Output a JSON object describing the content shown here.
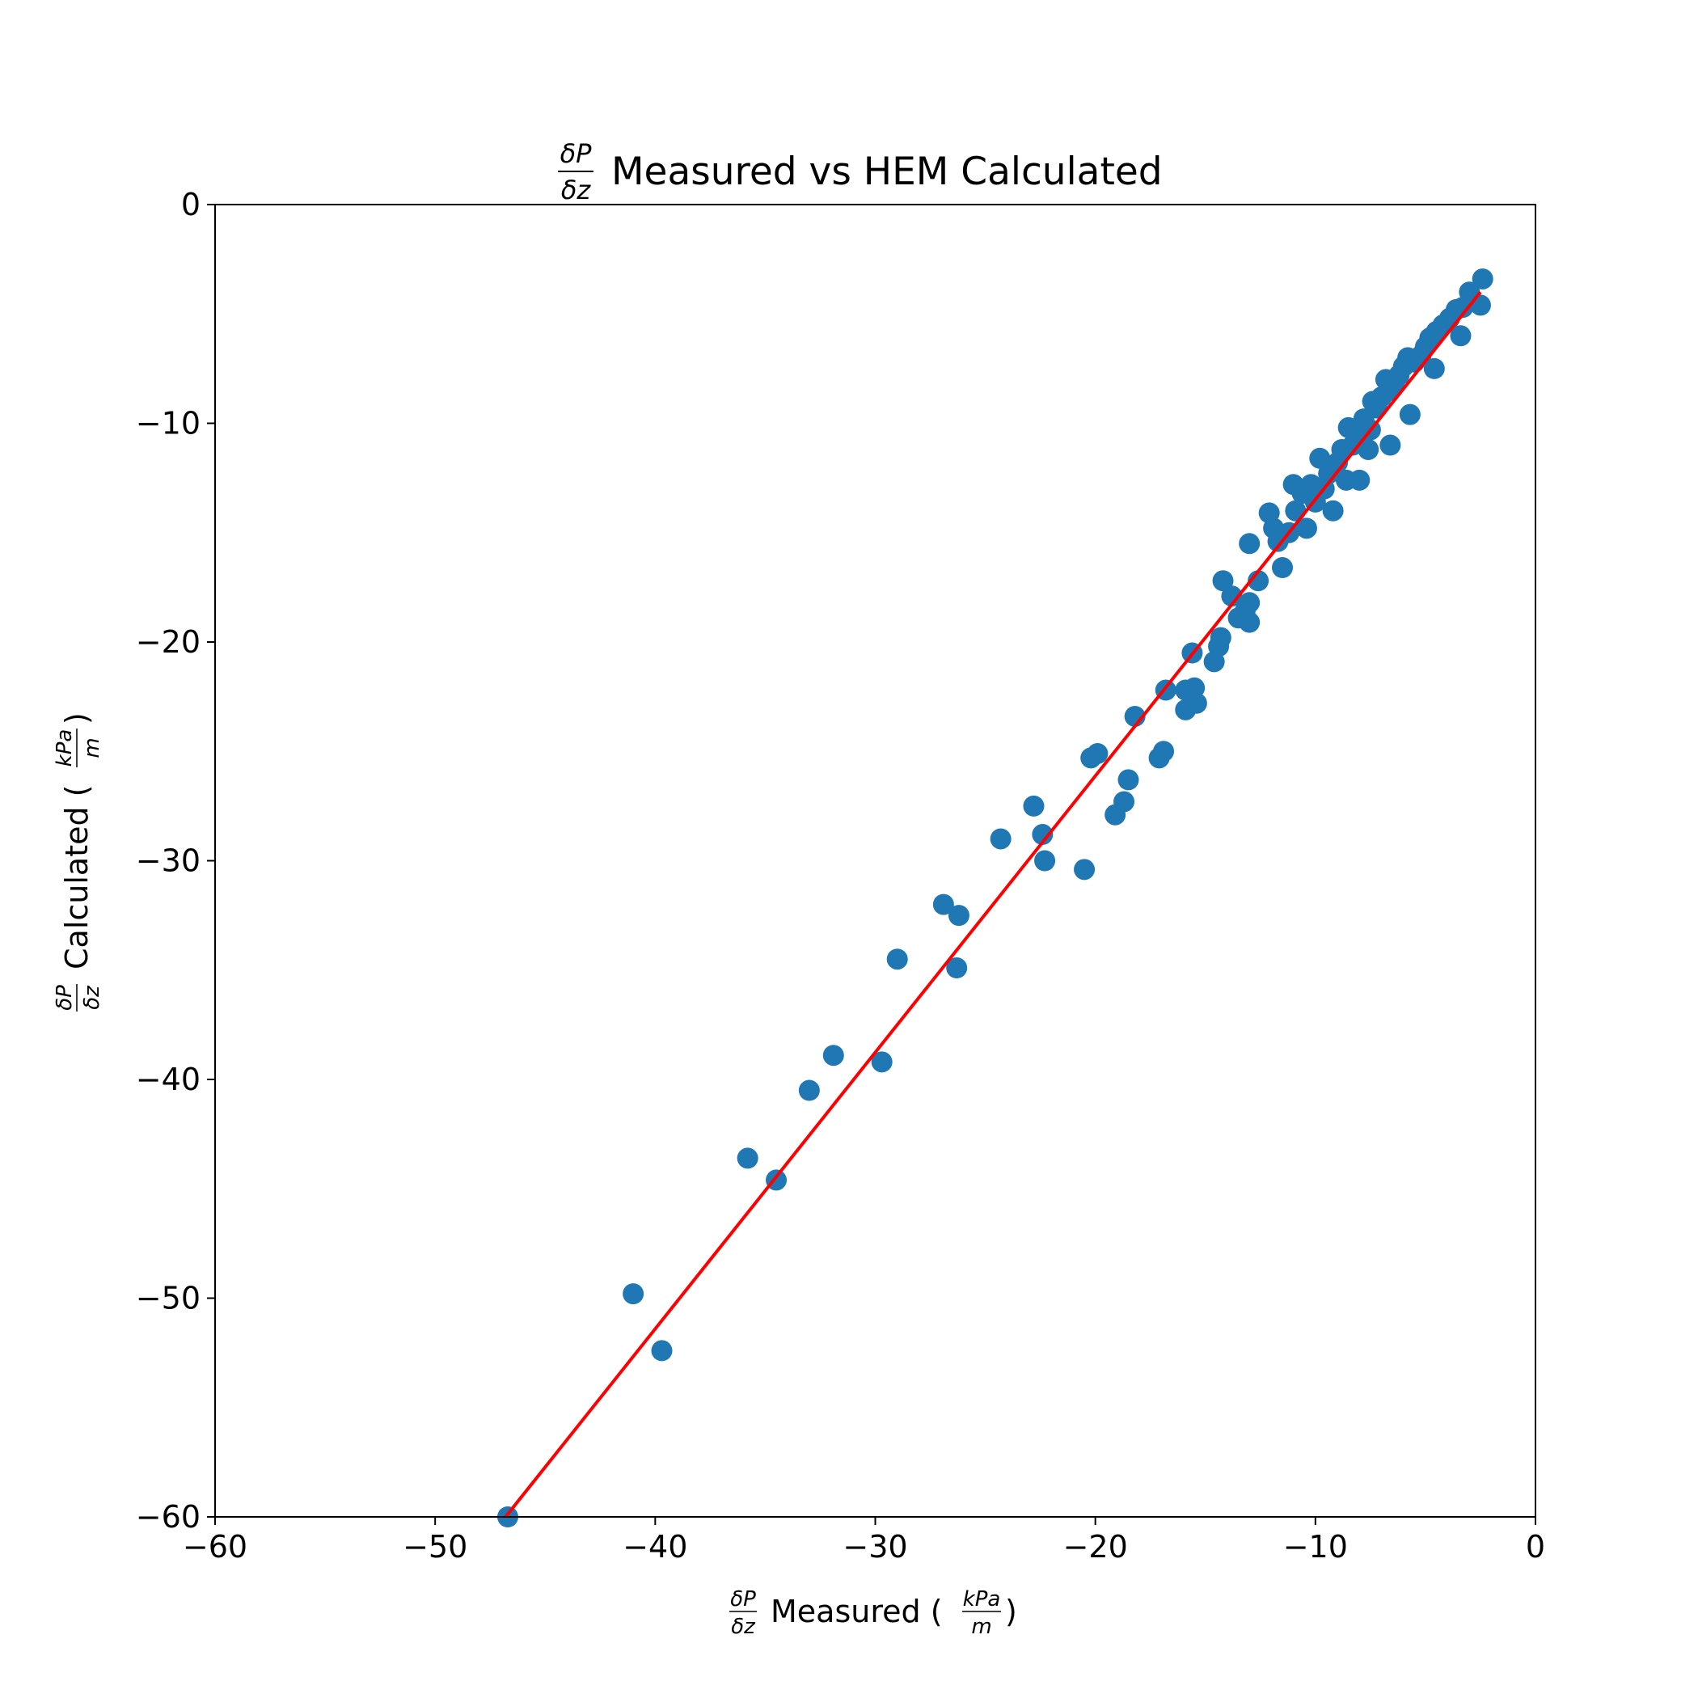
{
  "chart_data": {
    "type": "scatter",
    "title": {
      "frac_num": "δP",
      "frac_den": "δz",
      "text": "Measured vs HEM Calculated"
    },
    "xlabel": {
      "frac_num": "δP",
      "frac_den": "δz",
      "text": "Measured (",
      "unit_num": "kPa",
      "unit_den": "m",
      "close": ")"
    },
    "ylabel": {
      "frac_num": "δP",
      "frac_den": "δz",
      "text": "Calculated (",
      "unit_num": "kPa",
      "unit_den": "m",
      "close": ")"
    },
    "xlim": [
      -60,
      0
    ],
    "ylim": [
      -60,
      0
    ],
    "xticks": [
      -60,
      -50,
      -40,
      -30,
      -20,
      -10,
      0
    ],
    "yticks": [
      0,
      -10,
      -20,
      -30,
      -40,
      -50,
      -60
    ],
    "xtick_labels": [
      "−60",
      "−50",
      "−40",
      "−30",
      "−20",
      "−10",
      "0"
    ],
    "ytick_labels": [
      "0",
      "−10",
      "−20",
      "−30",
      "−40",
      "−50",
      "−60"
    ],
    "grid": false,
    "colors": {
      "points": "#1f77b4",
      "fit_line": "#ff0000",
      "axes": "#000000"
    },
    "fit_line": {
      "x": [
        -46.8,
        -2.5
      ],
      "y": [
        -60.0,
        -4.0
      ]
    },
    "points": [
      [
        -2.4,
        -3.4
      ],
      [
        -2.5,
        -4.6
      ],
      [
        -3.0,
        -4.0
      ],
      [
        -3.3,
        -4.7
      ],
      [
        -3.4,
        -6.0
      ],
      [
        -3.6,
        -4.8
      ],
      [
        -3.9,
        -5.2
      ],
      [
        -4.2,
        -5.5
      ],
      [
        -4.5,
        -5.8
      ],
      [
        -4.6,
        -7.5
      ],
      [
        -4.8,
        -6.1
      ],
      [
        -5.0,
        -6.5
      ],
      [
        -5.2,
        -6.9
      ],
      [
        -5.5,
        -7.2
      ],
      [
        -5.7,
        -9.6
      ],
      [
        -5.8,
        -7.0
      ],
      [
        -6.0,
        -7.4
      ],
      [
        -6.2,
        -7.8
      ],
      [
        -6.4,
        -8.1
      ],
      [
        -6.6,
        -8.5
      ],
      [
        -6.6,
        -11.0
      ],
      [
        -6.8,
        -8.0
      ],
      [
        -7.0,
        -8.8
      ],
      [
        -7.2,
        -9.3
      ],
      [
        -7.4,
        -9.0
      ],
      [
        -7.5,
        -10.3
      ],
      [
        -7.6,
        -11.2
      ],
      [
        -7.8,
        -9.8
      ],
      [
        -8.0,
        -10.5
      ],
      [
        -8.0,
        -12.6
      ],
      [
        -8.3,
        -11.0
      ],
      [
        -8.5,
        -10.2
      ],
      [
        -8.6,
        -12.6
      ],
      [
        -8.8,
        -11.2
      ],
      [
        -9.0,
        -11.8
      ],
      [
        -9.2,
        -14.0
      ],
      [
        -9.4,
        -12.3
      ],
      [
        -9.6,
        -13.0
      ],
      [
        -9.8,
        -11.6
      ],
      [
        -10.0,
        -13.6
      ],
      [
        -10.2,
        -12.8
      ],
      [
        -10.4,
        -14.8
      ],
      [
        -10.6,
        -13.2
      ],
      [
        -10.9,
        -14.0
      ],
      [
        -11.0,
        -12.8
      ],
      [
        -11.2,
        -15.0
      ],
      [
        -11.5,
        -16.6
      ],
      [
        -11.7,
        -15.4
      ],
      [
        -11.9,
        -14.8
      ],
      [
        -12.1,
        -14.1
      ],
      [
        -12.6,
        -17.2
      ],
      [
        -13.0,
        -15.5
      ],
      [
        -13.0,
        -18.2
      ],
      [
        -13.0,
        -19.1
      ],
      [
        -13.2,
        -18.6
      ],
      [
        -13.5,
        -18.9
      ],
      [
        -13.8,
        -17.9
      ],
      [
        -14.2,
        -17.2
      ],
      [
        -14.3,
        -19.8
      ],
      [
        -14.4,
        -20.2
      ],
      [
        -14.6,
        -20.9
      ],
      [
        -15.4,
        -22.8
      ],
      [
        -15.5,
        -22.1
      ],
      [
        -15.6,
        -20.5
      ],
      [
        -15.9,
        -22.2
      ],
      [
        -15.9,
        -23.1
      ],
      [
        -16.8,
        -22.2
      ],
      [
        -16.9,
        -25.0
      ],
      [
        -17.1,
        -25.3
      ],
      [
        -18.2,
        -23.4
      ],
      [
        -18.5,
        -26.3
      ],
      [
        -18.7,
        -27.3
      ],
      [
        -19.1,
        -27.9
      ],
      [
        -19.9,
        -25.1
      ],
      [
        -20.2,
        -25.3
      ],
      [
        -20.5,
        -30.4
      ],
      [
        -22.3,
        -30.0
      ],
      [
        -22.4,
        -28.8
      ],
      [
        -22.8,
        -27.5
      ],
      [
        -24.3,
        -29.0
      ],
      [
        -26.2,
        -32.5
      ],
      [
        -26.3,
        -34.9
      ],
      [
        -26.9,
        -32.0
      ],
      [
        -29.0,
        -34.5
      ],
      [
        -29.7,
        -39.2
      ],
      [
        -31.9,
        -38.9
      ],
      [
        -33.0,
        -40.5
      ],
      [
        -34.5,
        -44.6
      ],
      [
        -35.8,
        -43.6
      ],
      [
        -39.7,
        -52.4
      ],
      [
        -41.0,
        -49.8
      ],
      [
        -46.7,
        -60.0
      ]
    ]
  }
}
